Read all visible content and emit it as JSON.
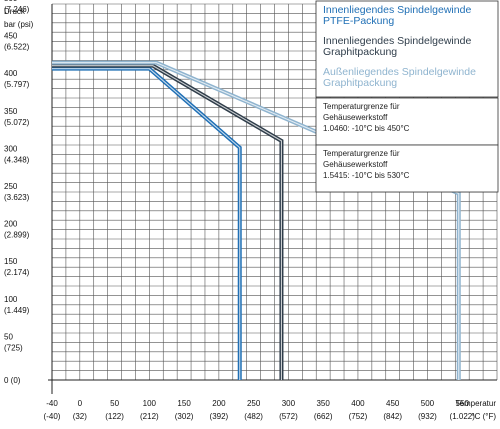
{
  "chart_data": {
    "type": "line",
    "ylabel": [
      "Druck",
      "bar (psi)"
    ],
    "xlabel": [
      "Temperatur",
      "°C (°F)"
    ],
    "xlim": [
      -40,
      600
    ],
    "ylim": [
      0,
      500
    ],
    "grid": true,
    "x_ticks": [
      {
        "value": -40,
        "label": "-40",
        "sub": "(-40)"
      },
      {
        "value": 0,
        "label": "0",
        "sub": "(32)"
      },
      {
        "value": 50,
        "label": "50",
        "sub": "(122)"
      },
      {
        "value": 100,
        "label": "100",
        "sub": "(212)"
      },
      {
        "value": 150,
        "label": "150",
        "sub": "(302)"
      },
      {
        "value": 200,
        "label": "200",
        "sub": "(392)"
      },
      {
        "value": 250,
        "label": "250",
        "sub": "(482)"
      },
      {
        "value": 300,
        "label": "300",
        "sub": "(572)"
      },
      {
        "value": 350,
        "label": "350",
        "sub": "(662)"
      },
      {
        "value": 400,
        "label": "400",
        "sub": "(752)"
      },
      {
        "value": 450,
        "label": "450",
        "sub": "(842)"
      },
      {
        "value": 500,
        "label": "500",
        "sub": "(932)"
      },
      {
        "value": 550,
        "label": "550",
        "sub": "(1.022)"
      }
    ],
    "y_ticks": [
      {
        "value": 500,
        "label": "500",
        "sub": "(7.246)"
      },
      {
        "value": 450,
        "label": "450",
        "sub": "(6.522)"
      },
      {
        "value": 400,
        "label": "400",
        "sub": "(5.797)"
      },
      {
        "value": 350,
        "label": "350",
        "sub": "(5.072)"
      },
      {
        "value": 300,
        "label": "300",
        "sub": "(4.348)"
      },
      {
        "value": 250,
        "label": "250",
        "sub": "(3.623)"
      },
      {
        "value": 200,
        "label": "200",
        "sub": "(2.899)"
      },
      {
        "value": 150,
        "label": "150",
        "sub": "(2.174)"
      },
      {
        "value": 100,
        "label": "100",
        "sub": "(1.449)"
      },
      {
        "value": 50,
        "label": "50",
        "sub": "(725)"
      },
      {
        "value": 0,
        "label": "0 (0)",
        "sub": ""
      }
    ],
    "series": [
      {
        "name": "Innenliegendes Spindelgewinde PTFE-Packung",
        "color": "#1f6fb5",
        "points": [
          [
            -40,
            414
          ],
          [
            100,
            414
          ],
          [
            230,
            309
          ],
          [
            230,
            0
          ]
        ]
      },
      {
        "name": "Innenliegendes Spindelgewinde Graphitpackung",
        "color": "#2f3d4a",
        "points": [
          [
            -40,
            418
          ],
          [
            105,
            418
          ],
          [
            290,
            318
          ],
          [
            290,
            0
          ]
        ]
      },
      {
        "name": "Außenliegendes Spindelgewinde Graphitpackung",
        "color": "#8fb4cf",
        "points": [
          [
            -40,
            422
          ],
          [
            110,
            422
          ],
          [
            545,
            248
          ],
          [
            545,
            0
          ]
        ]
      }
    ],
    "legend": {
      "placement": "top-right",
      "entries": [
        {
          "lines": [
            "Innenliegendes Spindelgewinde",
            "PTFE-Packung"
          ],
          "color": "#1f6fb5"
        },
        {
          "lines": [
            "Innenliegendes Spindelgewinde",
            "Graphitpackung"
          ],
          "color": "#2f3d4a"
        },
        {
          "lines": [
            "Außenliegendes Spindelgewinde",
            "Graphitpackung"
          ],
          "color": "#8fb4cf"
        }
      ]
    },
    "annotations": [
      {
        "lines": [
          "Temperaturgrenze für",
          "Gehäusewerkstoff",
          "1.0460: -10°C bis 450°C"
        ]
      },
      {
        "lines": [
          "Temperaturgrenze für",
          "Gehäusewerkstoff",
          "1.5415: -10°C bis 530°C"
        ]
      }
    ]
  }
}
